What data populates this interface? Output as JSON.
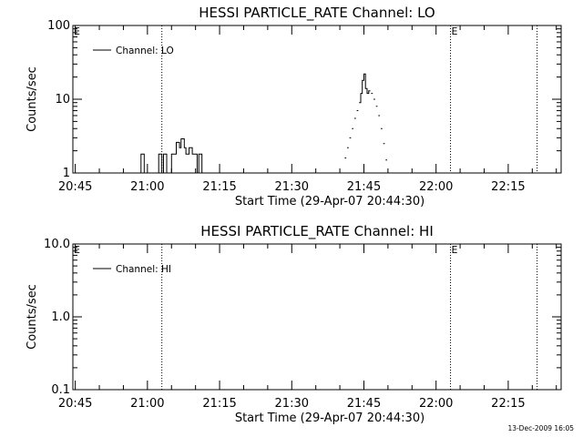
{
  "footer": {
    "timestamp": "13-Dec-2009 16:05"
  },
  "chart_data": [
    {
      "type": "line",
      "title": "HESSI PARTICLE_RATE Channel: LO",
      "xlabel": "Start Time (29-Apr-07 20:44:30)",
      "ylabel": "Counts/sec",
      "yscale": "log",
      "ylim": [
        1,
        100
      ],
      "xlim": [
        "20:44:30",
        "22:26:00"
      ],
      "y_tick_labels": [
        "1",
        "10",
        "100"
      ],
      "x_tick_labels": [
        "20:45",
        "21:00",
        "21:15",
        "21:30",
        "21:45",
        "22:00",
        "22:15"
      ],
      "vertical_markers": [
        {
          "time": "20:44:30",
          "label": "E"
        },
        {
          "time": "21:03:00",
          "label": ""
        },
        {
          "time": "22:03:00",
          "label": "E"
        },
        {
          "time": "22:21:00",
          "label": ""
        }
      ],
      "legend": {
        "placement": "top-left",
        "entries": [
          "Channel: LO"
        ]
      },
      "series": [
        {
          "name": "Channel: LO",
          "x": [
            "20:58:20",
            "20:58:40",
            "20:59:00",
            "20:59:20",
            "21:02:00",
            "21:02:20",
            "21:02:40",
            "21:03:00",
            "21:03:20",
            "21:03:40",
            "21:04:00",
            "21:04:40",
            "21:05:00",
            "21:05:20",
            "21:05:40",
            "21:06:00",
            "21:06:20",
            "21:06:40",
            "21:07:00",
            "21:07:20",
            "21:07:40",
            "21:08:00",
            "21:08:20",
            "21:08:40",
            "21:09:00",
            "21:09:20",
            "21:09:40",
            "21:10:00",
            "21:10:20",
            "21:10:40",
            "21:11:00",
            "21:11:20",
            "21:40:30",
            "21:41:00",
            "21:41:30",
            "21:42:00",
            "21:42:30",
            "21:43:00",
            "21:43:30",
            "21:44:00",
            "21:44:20",
            "21:44:40",
            "21:45:00",
            "21:45:20",
            "21:45:40",
            "21:46:00",
            "21:46:30",
            "21:47:00",
            "21:47:30",
            "21:48:00",
            "21:48:30",
            "21:49:00",
            "21:49:30",
            "21:50:00",
            "21:50:30",
            "21:51:00",
            "21:51:30",
            "21:52:00"
          ],
          "y": [
            1,
            1.8,
            1.8,
            1,
            1,
            1.8,
            1.8,
            1,
            1.8,
            1.8,
            1,
            1,
            1.8,
            1.8,
            1.8,
            2.6,
            2.6,
            2.2,
            2.9,
            2.9,
            2.2,
            1.8,
            1.8,
            2.2,
            2.2,
            1.8,
            1.8,
            1.8,
            1,
            1.8,
            1.8,
            1,
            1,
            1.6,
            2.2,
            3,
            4,
            5.5,
            7,
            9,
            12,
            18,
            22,
            14,
            12,
            13,
            12,
            10,
            8,
            6,
            4,
            2.5,
            1.5,
            1,
            1,
            1,
            1,
            1
          ]
        }
      ]
    },
    {
      "type": "line",
      "title": "HESSI PARTICLE_RATE Channel: HI",
      "xlabel": "Start Time (29-Apr-07 20:44:30)",
      "ylabel": "Counts/sec",
      "yscale": "log",
      "ylim": [
        0.1,
        10
      ],
      "xlim": [
        "20:44:30",
        "22:26:00"
      ],
      "y_tick_labels": [
        "0.1",
        "1.0",
        "10.0"
      ],
      "x_tick_labels": [
        "20:45",
        "21:00",
        "21:15",
        "21:30",
        "21:45",
        "22:00",
        "22:15"
      ],
      "vertical_markers": [
        {
          "time": "20:44:30",
          "label": "E"
        },
        {
          "time": "21:03:00",
          "label": ""
        },
        {
          "time": "22:03:00",
          "label": "E"
        },
        {
          "time": "22:21:00",
          "label": ""
        }
      ],
      "legend": {
        "placement": "top-left",
        "entries": [
          "Channel: HI"
        ]
      },
      "series": [
        {
          "name": "Channel: HI",
          "x": [],
          "y": []
        }
      ]
    }
  ]
}
